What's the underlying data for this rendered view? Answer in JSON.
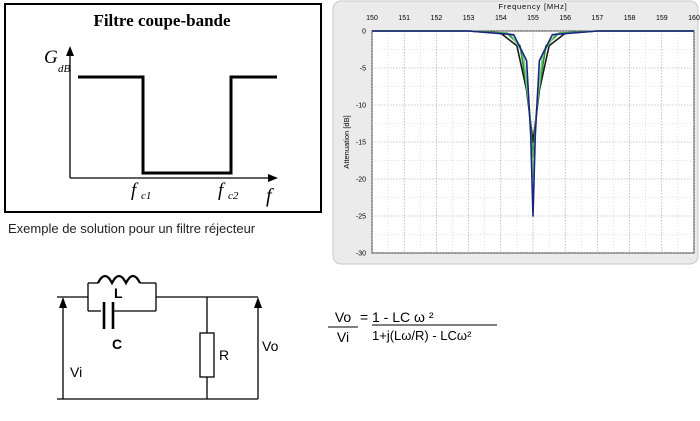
{
  "bandstop_diagram": {
    "title": "Filtre coupe-bande",
    "y_label_main": "G",
    "y_label_sub": "dB",
    "x_label": "f",
    "fc1_main": "f",
    "fc1_sub": "c1",
    "fc2_main": "f",
    "fc2_sub": "c2"
  },
  "caption": "Exemple de solution pour un filtre réjecteur",
  "chart_data": {
    "type": "line",
    "title": "",
    "xlabel": "Frequency [MHz]",
    "ylabel": "Attenuation [dB]",
    "xlim": [
      150,
      160
    ],
    "ylim": [
      -30,
      0
    ],
    "x_ticks": [
      150,
      151,
      152,
      153,
      154,
      155,
      156,
      157,
      158,
      159,
      160
    ],
    "y_ticks": [
      0,
      -5,
      -10,
      -15,
      -20,
      -25,
      -30
    ],
    "grid": true,
    "x_axis_position": "top",
    "series": [
      {
        "color": "#1a1a1a",
        "x": [
          150,
          153,
          154.0,
          154.5,
          154.8,
          155.0,
          155.2,
          155.5,
          156.0,
          157,
          160
        ],
        "y": [
          0,
          0,
          -0.3,
          -2,
          -8,
          -15,
          -8,
          -2,
          -0.3,
          0,
          0
        ]
      },
      {
        "color": "#1f8a2e",
        "x": [
          150,
          153,
          154.2,
          154.6,
          154.85,
          155.0,
          155.15,
          155.4,
          155.8,
          157,
          160
        ],
        "y": [
          0,
          0,
          -0.3,
          -2,
          -9,
          -17,
          -9,
          -2,
          -0.3,
          0,
          0
        ]
      },
      {
        "color": "#7ad081",
        "x": [
          150,
          153,
          154.3,
          154.7,
          154.9,
          155.0,
          155.1,
          155.3,
          155.7,
          157,
          160
        ],
        "y": [
          0,
          0,
          -0.4,
          -3,
          -11,
          -20,
          -11,
          -3,
          -0.4,
          0,
          0
        ]
      },
      {
        "color": "#1a237e",
        "x": [
          150,
          153,
          154.4,
          154.8,
          154.93,
          155.0,
          155.07,
          155.2,
          155.6,
          157,
          160
        ],
        "y": [
          0,
          0,
          -0.5,
          -4,
          -14,
          -25,
          -14,
          -4,
          -0.5,
          0,
          0
        ]
      }
    ]
  },
  "circuit": {
    "inductor_label": "L",
    "capacitor_label": "C",
    "resistor_label": "R",
    "input_label": "Vi",
    "output_label": "Vo"
  },
  "formula": {
    "lhs_num": "Vo",
    "lhs_den": "Vi",
    "equals": "=",
    "rhs_num": "1 - LC ω ²",
    "rhs_den": "1+j(Lω/R) - LCω²"
  }
}
